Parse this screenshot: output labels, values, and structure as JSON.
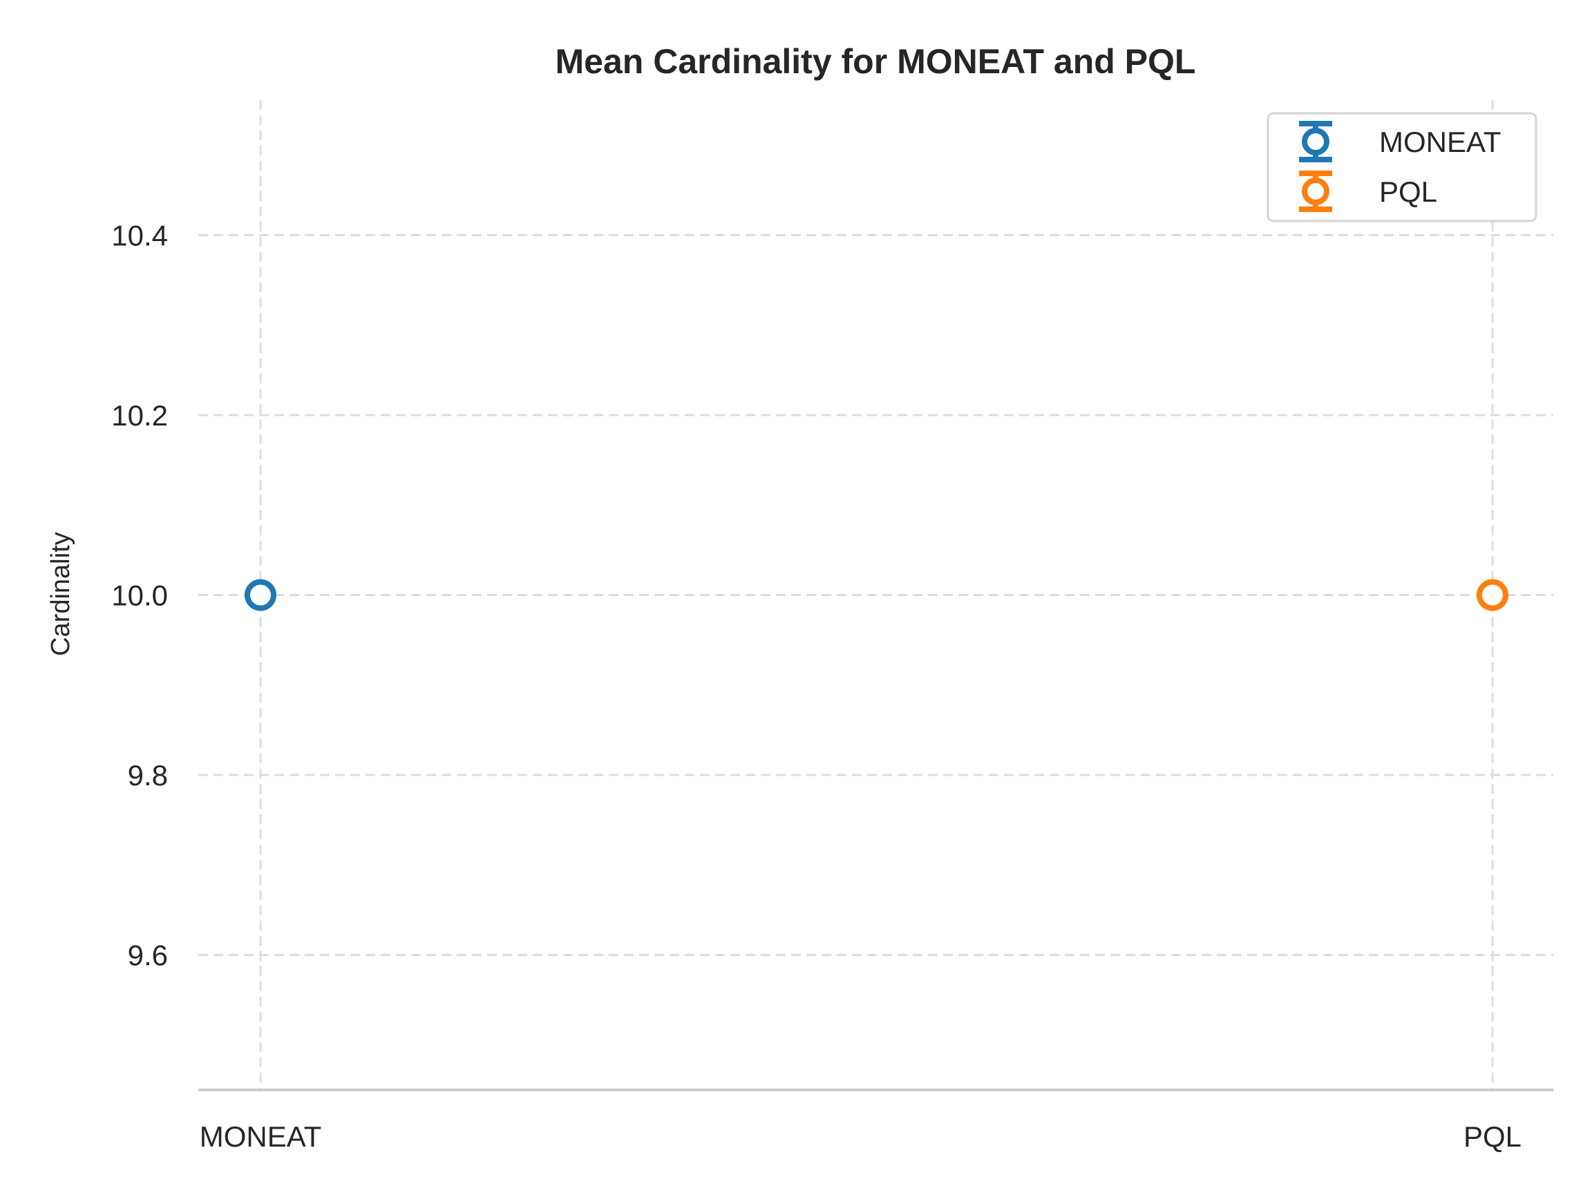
{
  "chart_data": {
    "type": "scatter",
    "title": "Mean Cardinality for MONEAT and PQL",
    "xlabel": "",
    "ylabel": "Cardinality",
    "categories": [
      "MONEAT",
      "PQL"
    ],
    "series": [
      {
        "name": "MONEAT",
        "category": "MONEAT",
        "values": [
          10.0
        ],
        "error": 0,
        "color": "#1f77b4"
      },
      {
        "name": "PQL",
        "category": "PQL",
        "values": [
          10.0
        ],
        "error": 0,
        "color": "#ff7f0e"
      }
    ],
    "ylim": [
      9.45,
      10.55
    ],
    "yticks": [
      "9.6",
      "9.8",
      "10.0",
      "10.2",
      "10.4"
    ],
    "grid": true,
    "legend_position": "top-right",
    "marker": "open-circle-with-errorbar"
  }
}
